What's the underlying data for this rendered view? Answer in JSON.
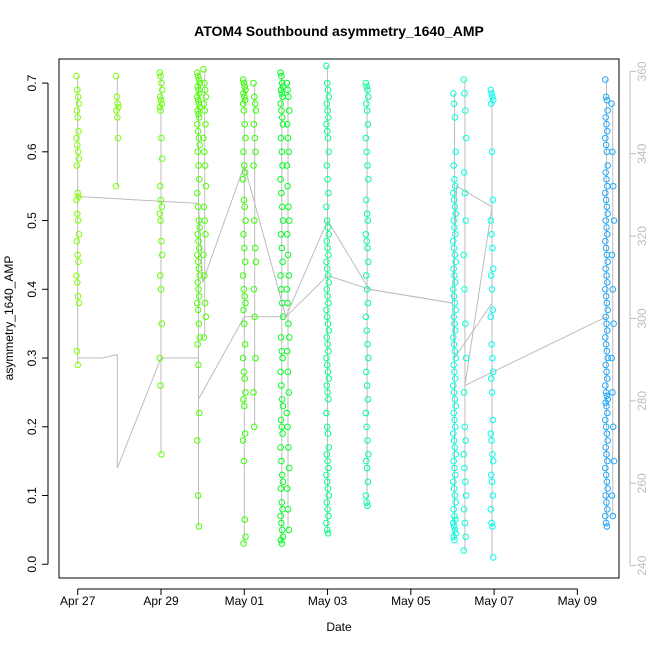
{
  "chart_data": {
    "type": "scatter",
    "title": "ATOM4 Southbound asymmetry_1640_AMP",
    "xlabel": "Date",
    "ylabel": "asymmetry_1640_AMP",
    "x_ticks": [
      "Apr 27",
      "Apr 29",
      "May 01",
      "May 03",
      "May 05",
      "May 07",
      "May 09"
    ],
    "x_tick_days": [
      0,
      2,
      4,
      6,
      8,
      10,
      12
    ],
    "xlim": [
      -0.45,
      13.0
    ],
    "ylim": [
      -0.02,
      0.735
    ],
    "y_ticks": [
      0.0,
      0.1,
      0.2,
      0.3,
      0.4,
      0.5,
      0.6,
      0.7
    ],
    "y2lim": [
      237,
      363
    ],
    "y2_ticks": [
      240,
      260,
      280,
      300,
      320,
      340,
      360
    ],
    "grid": false,
    "legend": "none",
    "point_style": "open circle",
    "line_color": "#bdbdbd",
    "series": [
      {
        "day": 0.0,
        "color": "#7fff00",
        "values": [
          0.71,
          0.69,
          0.68,
          0.67,
          0.66,
          0.65,
          0.63,
          0.62,
          0.61,
          0.6,
          0.59,
          0.58,
          0.54,
          0.535,
          0.53,
          0.51,
          0.5,
          0.48,
          0.47,
          0.45,
          0.44,
          0.42,
          0.41,
          0.39,
          0.38,
          0.31,
          0.29
        ]
      },
      {
        "day": 0.95,
        "color": "#7fff00",
        "values": [
          0.71,
          0.68,
          0.67,
          0.665,
          0.66,
          0.65,
          0.62,
          0.55
        ]
      },
      {
        "day": 2.0,
        "color": "#66ff00",
        "values": [
          0.715,
          0.71,
          0.7,
          0.69,
          0.68,
          0.675,
          0.67,
          0.665,
          0.66,
          0.62,
          0.59,
          0.55,
          0.53,
          0.52,
          0.51,
          0.5,
          0.47,
          0.45,
          0.42,
          0.4,
          0.35,
          0.3,
          0.26,
          0.16
        ]
      },
      {
        "day": 2.9,
        "color": "#4cff00",
        "values": [
          0.715,
          0.71,
          0.705,
          0.7,
          0.695,
          0.69,
          0.685,
          0.68,
          0.675,
          0.67,
          0.665,
          0.66,
          0.655,
          0.65,
          0.64,
          0.63,
          0.62,
          0.61,
          0.6,
          0.58,
          0.56,
          0.54,
          0.52,
          0.5,
          0.49,
          0.48,
          0.47,
          0.46,
          0.45,
          0.44,
          0.43,
          0.42,
          0.41,
          0.4,
          0.39,
          0.38,
          0.37,
          0.35,
          0.33,
          0.32,
          0.29,
          0.22,
          0.18,
          0.1,
          0.055
        ]
      },
      {
        "day": 3.05,
        "color": "#4cff00",
        "values": [
          0.72,
          0.7,
          0.69,
          0.68,
          0.67,
          0.66,
          0.64,
          0.62,
          0.6,
          0.58,
          0.55,
          0.52,
          0.5,
          0.48,
          0.45,
          0.42,
          0.38,
          0.36,
          0.33
        ]
      },
      {
        "day": 4.0,
        "color": "#33ff00",
        "values": [
          0.705,
          0.7,
          0.695,
          0.69,
          0.685,
          0.68,
          0.675,
          0.67,
          0.66,
          0.64,
          0.62,
          0.6,
          0.58,
          0.57,
          0.56,
          0.53,
          0.52,
          0.5,
          0.48,
          0.46,
          0.44,
          0.42,
          0.4,
          0.39,
          0.38,
          0.37,
          0.35,
          0.32,
          0.3,
          0.28,
          0.27,
          0.25,
          0.24,
          0.23,
          0.19,
          0.18,
          0.15,
          0.065,
          0.04,
          0.03
        ]
      },
      {
        "day": 4.25,
        "color": "#33ff00",
        "values": [
          0.7,
          0.68,
          0.67,
          0.66,
          0.64,
          0.62,
          0.6,
          0.58,
          0.5,
          0.46,
          0.44,
          0.4,
          0.36,
          0.3,
          0.25,
          0.2
        ]
      },
      {
        "day": 4.9,
        "color": "#00ff22",
        "values": [
          0.715,
          0.71,
          0.7,
          0.695,
          0.69,
          0.685,
          0.68,
          0.67,
          0.66,
          0.65,
          0.64,
          0.62,
          0.6,
          0.58,
          0.56,
          0.54,
          0.52,
          0.5,
          0.48,
          0.46,
          0.44,
          0.42,
          0.4,
          0.38,
          0.36,
          0.33,
          0.31,
          0.3,
          0.28,
          0.26,
          0.24,
          0.23,
          0.21,
          0.2,
          0.19,
          0.17,
          0.15,
          0.13,
          0.12,
          0.11,
          0.09,
          0.08,
          0.07,
          0.06,
          0.05,
          0.04,
          0.035,
          0.03
        ]
      },
      {
        "day": 5.05,
        "color": "#00ff22",
        "values": [
          0.7,
          0.69,
          0.68,
          0.66,
          0.64,
          0.62,
          0.6,
          0.58,
          0.55,
          0.52,
          0.5,
          0.48,
          0.45,
          0.42,
          0.4,
          0.38,
          0.35,
          0.33,
          0.31,
          0.28,
          0.25,
          0.22,
          0.2,
          0.17,
          0.14,
          0.11,
          0.08,
          0.05
        ]
      },
      {
        "day": 6.0,
        "color": "#00ff88",
        "values": [
          0.725,
          0.7,
          0.69,
          0.68,
          0.67,
          0.66,
          0.65,
          0.64,
          0.63,
          0.62,
          0.6,
          0.58,
          0.56,
          0.54,
          0.52,
          0.5,
          0.49,
          0.48,
          0.47,
          0.46,
          0.45,
          0.44,
          0.43,
          0.42,
          0.41,
          0.4,
          0.39,
          0.38,
          0.37,
          0.36,
          0.35,
          0.34,
          0.33,
          0.32,
          0.31,
          0.3,
          0.29,
          0.28,
          0.27,
          0.26,
          0.25,
          0.24,
          0.22,
          0.2,
          0.19,
          0.17,
          0.16,
          0.15,
          0.14,
          0.13,
          0.12,
          0.11,
          0.1,
          0.09,
          0.08,
          0.07,
          0.06,
          0.05,
          0.045
        ]
      },
      {
        "day": 6.95,
        "color": "#00ff99",
        "values": [
          0.7,
          0.695,
          0.69,
          0.68,
          0.67,
          0.66,
          0.64,
          0.62,
          0.6,
          0.58,
          0.56,
          0.53,
          0.51,
          0.5,
          0.48,
          0.47,
          0.46,
          0.44,
          0.42,
          0.4,
          0.38,
          0.36,
          0.34,
          0.32,
          0.3,
          0.28,
          0.26,
          0.24,
          0.22,
          0.2,
          0.18,
          0.16,
          0.15,
          0.14,
          0.12,
          0.1,
          0.09,
          0.085
        ]
      },
      {
        "day": 9.05,
        "color": "#00ffdd",
        "values": [
          0.685,
          0.67,
          0.65,
          0.6,
          0.58,
          0.56,
          0.55,
          0.54,
          0.53,
          0.52,
          0.51,
          0.5,
          0.49,
          0.48,
          0.47,
          0.46,
          0.45,
          0.44,
          0.43,
          0.42,
          0.41,
          0.4,
          0.39,
          0.38,
          0.37,
          0.36,
          0.35,
          0.34,
          0.33,
          0.32,
          0.31,
          0.3,
          0.29,
          0.28,
          0.27,
          0.26,
          0.25,
          0.24,
          0.23,
          0.22,
          0.21,
          0.2,
          0.19,
          0.18,
          0.17,
          0.16,
          0.15,
          0.14,
          0.13,
          0.12,
          0.11,
          0.1,
          0.09,
          0.08,
          0.07,
          0.065,
          0.06,
          0.055,
          0.05,
          0.045,
          0.04,
          0.035
        ]
      },
      {
        "day": 9.3,
        "color": "#00ffdd",
        "values": [
          0.705,
          0.685,
          0.66,
          0.62,
          0.57,
          0.54,
          0.5,
          0.45,
          0.4,
          0.35,
          0.3,
          0.25,
          0.2,
          0.18,
          0.16,
          0.14,
          0.12,
          0.1,
          0.08,
          0.06,
          0.04,
          0.02
        ]
      },
      {
        "day": 9.95,
        "color": "#00ffee",
        "values": [
          0.69,
          0.685,
          0.68,
          0.675,
          0.67,
          0.6,
          0.53,
          0.5,
          0.48,
          0.46,
          0.43,
          0.42,
          0.4,
          0.37,
          0.36,
          0.32,
          0.3,
          0.28,
          0.27,
          0.25,
          0.21,
          0.19,
          0.18,
          0.16,
          0.15,
          0.13,
          0.12,
          0.1,
          0.08,
          0.06,
          0.055,
          0.01
        ]
      },
      {
        "day": 12.7,
        "color": "#1aa8ff",
        "values": [
          0.705,
          0.68,
          0.675,
          0.66,
          0.65,
          0.64,
          0.63,
          0.62,
          0.61,
          0.6,
          0.58,
          0.57,
          0.56,
          0.55,
          0.54,
          0.53,
          0.52,
          0.51,
          0.5,
          0.49,
          0.48,
          0.47,
          0.46,
          0.45,
          0.44,
          0.43,
          0.42,
          0.41,
          0.4,
          0.39,
          0.38,
          0.37,
          0.36,
          0.35,
          0.34,
          0.33,
          0.32,
          0.31,
          0.3,
          0.29,
          0.28,
          0.27,
          0.26,
          0.25,
          0.245,
          0.24,
          0.235,
          0.23,
          0.22,
          0.21,
          0.2,
          0.19,
          0.18,
          0.17,
          0.16,
          0.15,
          0.14,
          0.13,
          0.12,
          0.11,
          0.1,
          0.09,
          0.08,
          0.07,
          0.06,
          0.055
        ]
      },
      {
        "day": 12.85,
        "color": "#1aa8ff",
        "values": [
          0.67,
          0.6,
          0.55,
          0.5,
          0.45,
          0.4,
          0.35,
          0.3,
          0.25,
          0.2,
          0.15,
          0.1,
          0.07
        ]
      }
    ],
    "trend_line": [
      [
        0.0,
        0.535
      ],
      [
        2.9,
        0.525
      ],
      [
        3.0,
        0.41
      ],
      [
        4.0,
        0.58
      ],
      [
        5.0,
        0.36
      ],
      [
        6.0,
        0.5
      ],
      [
        7.0,
        0.4
      ],
      [
        9.0,
        0.38
      ],
      [
        9.1,
        0.55
      ],
      [
        9.95,
        0.52
      ],
      [
        9.3,
        0.26
      ],
      [
        12.7,
        0.36
      ]
    ],
    "step_line": [
      [
        0.0,
        0.3
      ],
      [
        0.6,
        0.3
      ],
      [
        0.95,
        0.305
      ],
      [
        0.95,
        0.14
      ],
      [
        2.0,
        0.3
      ],
      [
        2.9,
        0.3
      ],
      [
        2.9,
        0.24
      ],
      [
        4.0,
        0.36
      ],
      [
        5.0,
        0.36
      ],
      [
        6.0,
        0.42
      ],
      [
        7.0,
        0.4
      ],
      [
        9.0,
        0.38
      ],
      [
        9.05,
        0.3
      ],
      [
        9.95,
        0.38
      ]
    ]
  }
}
